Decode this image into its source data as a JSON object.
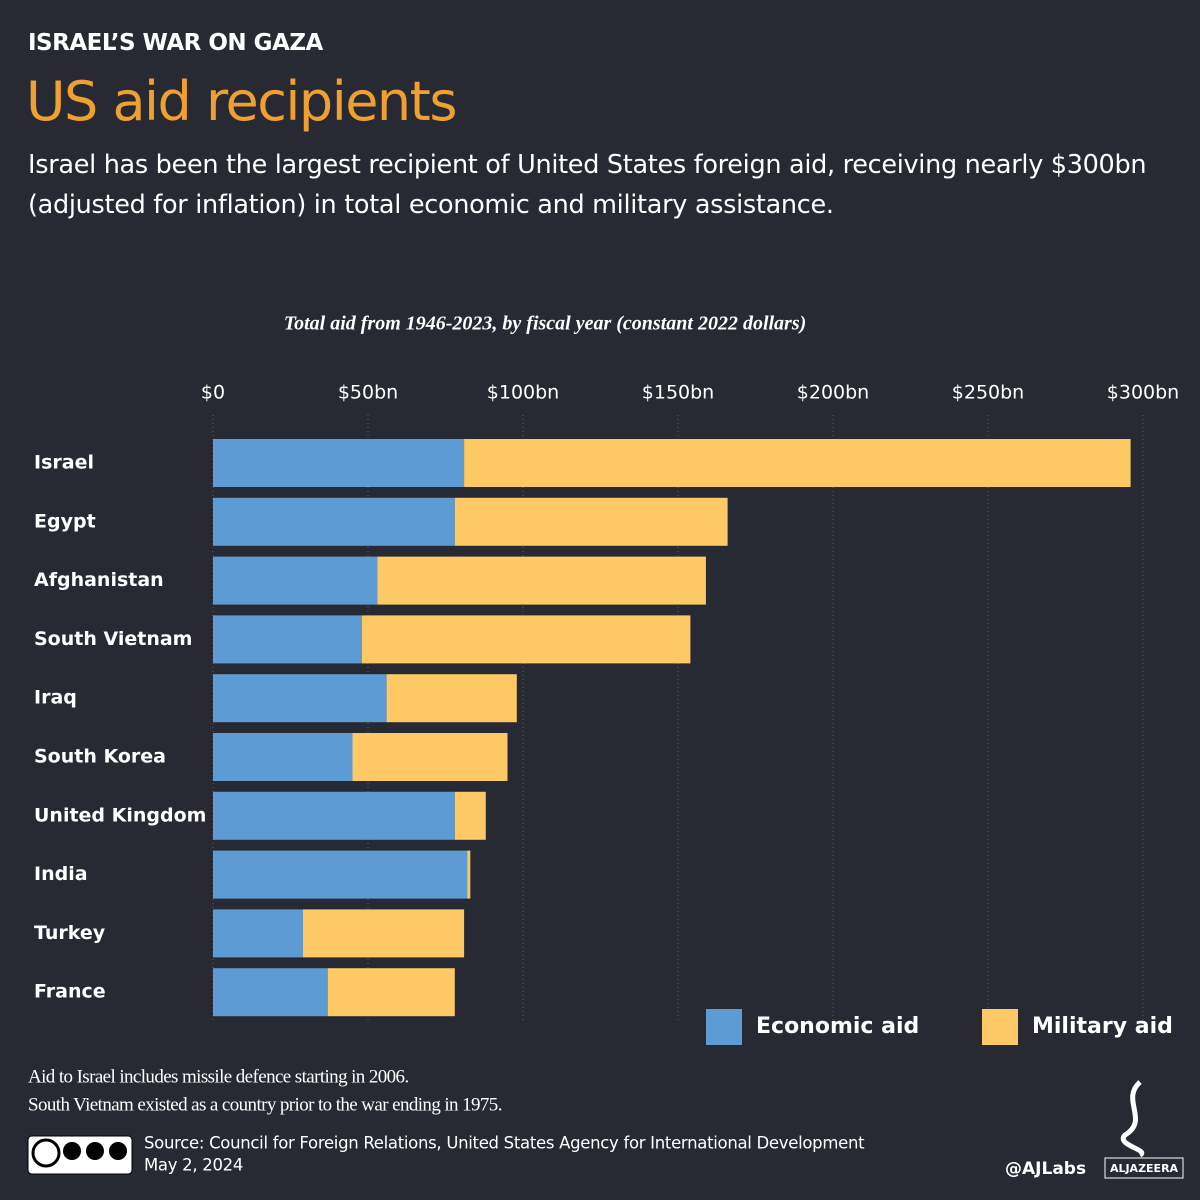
{
  "kicker": "ISRAEL’S WAR ON GAZA",
  "chart_data": {
    "type": "stacked-bar-horizontal",
    "title": "US aid recipients",
    "subtitle": "Israel has been the largest recipient of United States foreign aid, receiving nearly $300bn (adjusted for inflation) in total economic and military assistance.",
    "axis_title": "Total aid from 1946-2023, by fiscal year (constant 2022 dollars)",
    "categories": [
      "Israel",
      "Egypt",
      "Afghanistan",
      "South Vietnam",
      "Iraq",
      "South Korea",
      "United Kingdom",
      "India",
      "Turkey",
      "France"
    ],
    "series": [
      {
        "name": "Economic aid",
        "color": "#5d9bd4",
        "values": [
          81,
          78,
          53,
          48,
          56,
          45,
          78,
          82,
          29,
          37
        ]
      },
      {
        "name": "Military aid",
        "color": "#fdc964",
        "values": [
          215,
          88,
          106,
          106,
          42,
          50,
          10,
          1,
          52,
          41
        ]
      }
    ],
    "xlim": [
      0,
      300
    ],
    "xticks": [
      {
        "value": 0,
        "label": "$0"
      },
      {
        "value": 50,
        "label": "$50bn"
      },
      {
        "value": 100,
        "label": "$100bn"
      },
      {
        "value": 150,
        "label": "$150bn"
      },
      {
        "value": 200,
        "label": "$200bn"
      },
      {
        "value": 250,
        "label": "$250bn"
      },
      {
        "value": 300,
        "label": "$300bn"
      }
    ],
    "grid": true,
    "legend": "bottom-right"
  },
  "notes": [
    "Aid to Israel includes missile defence starting in 2006.",
    "South Vietnam existed as a country prior to the war ending in 1975."
  ],
  "source": "Source:  Council for Foreign Relations, United States Agency for International Development",
  "date": "May 2, 2024",
  "handle": "@AJLabs",
  "logo": "ALJAZEERA"
}
